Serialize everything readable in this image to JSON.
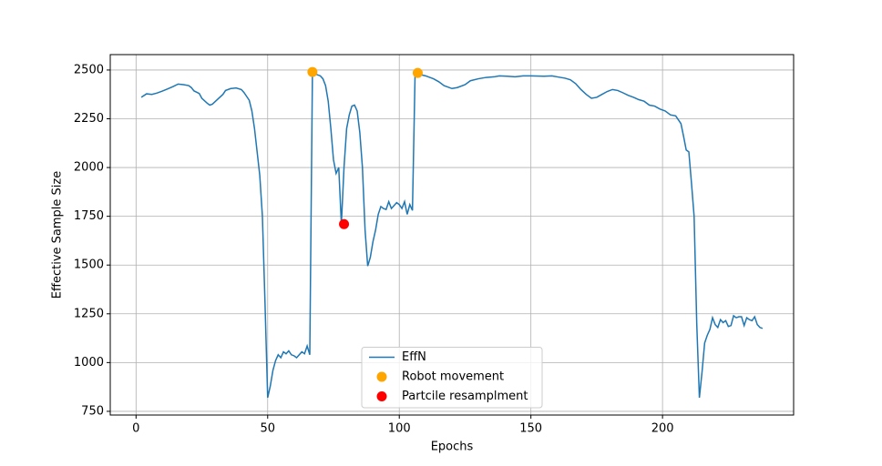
{
  "chart_data": {
    "type": "line",
    "xlabel": "Epochs",
    "ylabel": "Effective Sample Size",
    "xlim": [
      -9.8,
      249.8
    ],
    "ylim": [
      731,
      2579
    ],
    "xticks": [
      0,
      50,
      100,
      150,
      200
    ],
    "yticks": [
      750,
      1000,
      1250,
      1500,
      1750,
      2000,
      2250,
      2500
    ],
    "grid": true,
    "legend": "lower center",
    "series": [
      {
        "name": "EffN",
        "type": "line",
        "color": "#1f77b4",
        "x": [
          2,
          4,
          6,
          8,
          10,
          12,
          14,
          16,
          18,
          20,
          21,
          22,
          24,
          25,
          27,
          28,
          29,
          31,
          33,
          34,
          36,
          38,
          40,
          41,
          42,
          43,
          44,
          45,
          46,
          47,
          48,
          49,
          50,
          51,
          52,
          53,
          54,
          55,
          56,
          57,
          58,
          59,
          60,
          61,
          62,
          63,
          64,
          65,
          66,
          67,
          68,
          70,
          71,
          72,
          73,
          74,
          75,
          76,
          77,
          78,
          79,
          80,
          81,
          82,
          83,
          84,
          85,
          86,
          87,
          88,
          89,
          90,
          91,
          92,
          93,
          94,
          95,
          96,
          97,
          98,
          99,
          100,
          101,
          102,
          103,
          104,
          105,
          106,
          107,
          110,
          113,
          115,
          117,
          120,
          122,
          125,
          127,
          130,
          133,
          136,
          138,
          141,
          144,
          147,
          150,
          155,
          158,
          160,
          163,
          165,
          167,
          169,
          171,
          173,
          175,
          177,
          179,
          181,
          183,
          185,
          187,
          189,
          191,
          193,
          195,
          197,
          199,
          201,
          203,
          205,
          206,
          207,
          208,
          209,
          210,
          211,
          212,
          213,
          214,
          215,
          216,
          217,
          218,
          219,
          220,
          221,
          222,
          223,
          224,
          225,
          226,
          227,
          228,
          229,
          230,
          231,
          232,
          233,
          234,
          235,
          236,
          237,
          238
        ],
        "values": [
          2360,
          2378,
          2375,
          2382,
          2392,
          2403,
          2415,
          2428,
          2425,
          2420,
          2410,
          2393,
          2380,
          2355,
          2330,
          2320,
          2325,
          2350,
          2375,
          2395,
          2405,
          2408,
          2400,
          2385,
          2365,
          2345,
          2290,
          2200,
          2080,
          1960,
          1750,
          1300,
          820,
          880,
          960,
          1010,
          1040,
          1025,
          1055,
          1045,
          1060,
          1040,
          1035,
          1025,
          1040,
          1055,
          1045,
          1085,
          1040,
          2480,
          2480,
          2470,
          2455,
          2420,
          2340,
          2200,
          2040,
          1970,
          2000,
          1710,
          2000,
          2200,
          2270,
          2315,
          2320,
          2290,
          2180,
          2000,
          1680,
          1495,
          1540,
          1620,
          1680,
          1760,
          1800,
          1790,
          1785,
          1825,
          1790,
          1805,
          1820,
          1810,
          1790,
          1825,
          1760,
          1810,
          1780,
          2480,
          2480,
          2470,
          2455,
          2440,
          2420,
          2405,
          2410,
          2425,
          2445,
          2455,
          2462,
          2465,
          2470,
          2468,
          2465,
          2470,
          2470,
          2468,
          2470,
          2465,
          2458,
          2450,
          2430,
          2400,
          2375,
          2355,
          2360,
          2375,
          2390,
          2400,
          2395,
          2383,
          2370,
          2360,
          2348,
          2340,
          2320,
          2315,
          2300,
          2290,
          2270,
          2265,
          2245,
          2225,
          2160,
          2090,
          2080,
          1920,
          1750,
          1200,
          820,
          950,
          1100,
          1140,
          1170,
          1230,
          1195,
          1180,
          1220,
          1205,
          1215,
          1185,
          1190,
          1240,
          1230,
          1235,
          1235,
          1190,
          1230,
          1220,
          1215,
          1235,
          1195,
          1180,
          1175
        ]
      },
      {
        "name": "Robot movement",
        "type": "scatter",
        "color": "#ffa500",
        "x": [
          67,
          107
        ],
        "values": [
          2490,
          2485
        ]
      },
      {
        "name": "Partcile resamplment",
        "type": "scatter",
        "color": "#ff0000",
        "x": [
          79
        ],
        "values": [
          1710
        ]
      }
    ]
  }
}
